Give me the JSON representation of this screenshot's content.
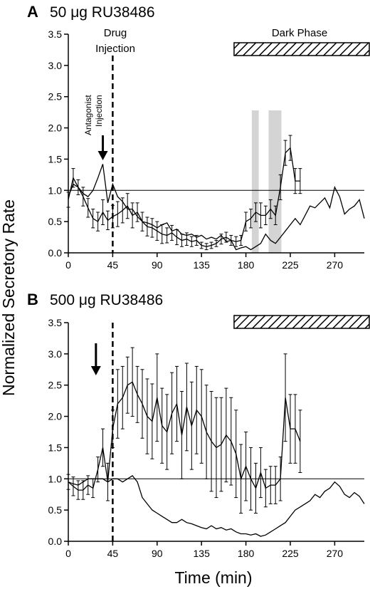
{
  "chart_data": [
    {
      "type": "line",
      "panel_letter": "A",
      "title": "50 μg RU38486",
      "xlim": [
        0,
        300
      ],
      "ylim": [
        0,
        3.5
      ],
      "xticks": [
        0,
        45,
        90,
        135,
        180,
        225,
        270
      ],
      "yticks": [
        "0.0",
        "0.5",
        "1.0",
        "1.5",
        "2.0",
        "2.5",
        "3.0",
        "3.5"
      ],
      "reference_line_y": 1.0,
      "drug_injection_x": 45,
      "antagonist_arrow_x": 35,
      "dark_phase": [
        168,
        300
      ],
      "shaded_x_ranges": [
        [
          186,
          193
        ],
        [
          203,
          216
        ]
      ],
      "annotations": {
        "drug": [
          "Drug",
          "Injection"
        ],
        "antagonist": [
          "Antagonist",
          "Injection"
        ],
        "dark": "Dark Phase"
      },
      "series": [
        {
          "style": "error",
          "x": [
            0,
            5,
            10,
            15,
            20,
            25,
            30,
            35,
            40,
            45,
            50,
            55,
            60,
            65,
            70,
            75,
            80,
            85,
            90,
            95,
            100,
            105,
            110,
            115,
            120,
            125,
            130,
            135,
            140,
            145,
            150,
            155,
            160,
            165,
            170,
            175,
            180,
            185,
            190,
            195,
            200,
            205,
            210,
            215,
            220,
            225,
            230,
            235
          ],
          "y": [
            0.85,
            1.2,
            1.05,
            0.9,
            0.72,
            0.55,
            0.5,
            0.65,
            0.52,
            0.58,
            0.62,
            0.68,
            0.75,
            0.6,
            0.65,
            0.5,
            0.42,
            0.4,
            0.35,
            0.3,
            0.28,
            0.32,
            0.25,
            0.2,
            0.22,
            0.18,
            0.2,
            0.12,
            0.1,
            0.12,
            0.15,
            0.22,
            0.25,
            0.2,
            0.18,
            0.2,
            0.5,
            0.55,
            0.65,
            0.6,
            0.6,
            0.7,
            0.6,
            1.05,
            1.6,
            1.68,
            1.15,
            1.15
          ],
          "err": [
            0.12,
            0.15,
            0.12,
            0.15,
            0.15,
            0.15,
            0.15,
            0.2,
            0.15,
            0.18,
            0.2,
            0.2,
            0.2,
            0.2,
            0.15,
            0.15,
            0.15,
            0.15,
            0.15,
            0.15,
            0.12,
            0.12,
            0.12,
            0.1,
            0.1,
            0.08,
            0.08,
            0.05,
            0.05,
            0.05,
            0.05,
            0.08,
            0.08,
            0.08,
            0.08,
            0.08,
            0.15,
            0.15,
            0.15,
            0.2,
            0.15,
            0.15,
            0.15,
            0.2,
            0.2,
            0.2,
            0.2,
            0.2
          ]
        },
        {
          "style": "plain",
          "x": [
            0,
            5,
            10,
            15,
            20,
            25,
            30,
            35,
            40,
            45,
            50,
            55,
            60,
            65,
            70,
            75,
            80,
            85,
            90,
            95,
            100,
            105,
            110,
            115,
            120,
            125,
            130,
            135,
            140,
            145,
            150,
            155,
            160,
            165,
            170,
            175,
            180,
            185,
            190,
            195,
            200,
            205,
            210,
            215,
            220,
            225,
            230,
            235,
            240,
            245,
            250,
            255,
            260,
            265,
            270,
            275,
            280,
            285,
            290,
            295,
            300
          ],
          "y": [
            0.9,
            1.1,
            1.05,
            0.95,
            0.9,
            1.0,
            1.2,
            1.42,
            0.8,
            1.1,
            0.9,
            0.82,
            0.7,
            0.7,
            0.58,
            0.5,
            0.48,
            0.45,
            0.4,
            0.45,
            0.48,
            0.35,
            0.38,
            0.3,
            0.28,
            0.3,
            0.25,
            0.28,
            0.22,
            0.25,
            0.22,
            0.28,
            0.18,
            0.2,
            0.05,
            0.08,
            0.1,
            0.05,
            0.1,
            0.15,
            0.3,
            0.2,
            0.15,
            0.25,
            0.35,
            0.45,
            0.55,
            0.45,
            0.6,
            0.75,
            0.72,
            0.8,
            0.88,
            0.72,
            1.05,
            0.9,
            0.62,
            0.7,
            0.75,
            0.85,
            0.55
          ]
        }
      ]
    },
    {
      "type": "line",
      "panel_letter": "B",
      "title": "500 μg RU38486",
      "xlim": [
        0,
        300
      ],
      "ylim": [
        0,
        3.5
      ],
      "xticks": [
        0,
        45,
        90,
        135,
        180,
        225,
        270
      ],
      "yticks": [
        "0.0",
        "0.5",
        "1.0",
        "1.5",
        "2.0",
        "2.5",
        "3.0",
        "3.5"
      ],
      "reference_line_y": 1.0,
      "drug_injection_x": 45,
      "antagonist_arrow_x": 28,
      "dark_phase": [
        168,
        300
      ],
      "series": [
        {
          "style": "error",
          "x": [
            0,
            5,
            10,
            15,
            20,
            25,
            30,
            35,
            40,
            45,
            50,
            55,
            60,
            65,
            70,
            75,
            80,
            85,
            90,
            95,
            100,
            105,
            110,
            115,
            120,
            125,
            130,
            135,
            140,
            145,
            150,
            155,
            160,
            165,
            170,
            175,
            180,
            185,
            190,
            195,
            200,
            205,
            210,
            215,
            220,
            225,
            230,
            235
          ],
          "y": [
            0.95,
            0.88,
            0.82,
            0.82,
            0.9,
            0.85,
            1.15,
            1.5,
            0.95,
            1.8,
            2.2,
            2.3,
            2.5,
            2.55,
            2.35,
            2.2,
            2.0,
            1.92,
            2.3,
            1.85,
            1.75,
            2.05,
            2.2,
            1.7,
            2.15,
            1.85,
            2.1,
            2.0,
            1.75,
            1.6,
            1.5,
            1.55,
            1.7,
            1.6,
            1.4,
            1.0,
            1.2,
            1.0,
            0.85,
            1.1,
            0.85,
            0.9,
            0.9,
            1.0,
            2.3,
            1.8,
            1.8,
            1.6
          ],
          "err": [
            0.12,
            0.15,
            0.15,
            0.15,
            0.15,
            0.15,
            0.2,
            0.3,
            0.3,
            0.3,
            0.55,
            0.5,
            0.45,
            0.55,
            0.45,
            0.55,
            0.6,
            0.6,
            0.7,
            0.6,
            0.6,
            0.65,
            0.6,
            0.7,
            0.7,
            0.7,
            0.7,
            0.75,
            0.75,
            0.8,
            0.8,
            0.75,
            0.75,
            0.7,
            0.7,
            0.55,
            0.55,
            0.5,
            0.4,
            0.4,
            0.3,
            0.3,
            0.3,
            0.35,
            0.7,
            0.55,
            0.55,
            0.5
          ]
        },
        {
          "style": "plain",
          "x": [
            0,
            5,
            10,
            15,
            20,
            25,
            30,
            35,
            40,
            45,
            50,
            55,
            60,
            65,
            70,
            75,
            80,
            85,
            90,
            95,
            100,
            105,
            110,
            115,
            120,
            125,
            130,
            135,
            140,
            145,
            150,
            155,
            160,
            165,
            170,
            175,
            180,
            185,
            190,
            195,
            200,
            205,
            210,
            215,
            220,
            225,
            230,
            235,
            240,
            245,
            250,
            255,
            260,
            265,
            270,
            275,
            280,
            285,
            290,
            295,
            300
          ],
          "y": [
            0.95,
            0.92,
            0.9,
            0.95,
            1.0,
            1.0,
            1.0,
            1.0,
            0.95,
            1.0,
            1.0,
            0.95,
            1.0,
            1.05,
            0.95,
            0.7,
            0.6,
            0.5,
            0.45,
            0.4,
            0.35,
            0.3,
            0.3,
            0.35,
            0.3,
            0.28,
            0.25,
            0.22,
            0.2,
            0.25,
            0.2,
            0.22,
            0.18,
            0.2,
            0.15,
            0.12,
            0.12,
            0.1,
            0.12,
            0.08,
            0.1,
            0.15,
            0.2,
            0.25,
            0.3,
            0.4,
            0.5,
            0.55,
            0.6,
            0.65,
            0.75,
            0.7,
            0.8,
            0.85,
            0.95,
            0.88,
            0.75,
            0.7,
            0.78,
            0.72,
            0.6
          ]
        }
      ]
    }
  ],
  "axes": {
    "ylabel": "Normalized Secretory Rate",
    "xlabel": "Time (min)"
  }
}
